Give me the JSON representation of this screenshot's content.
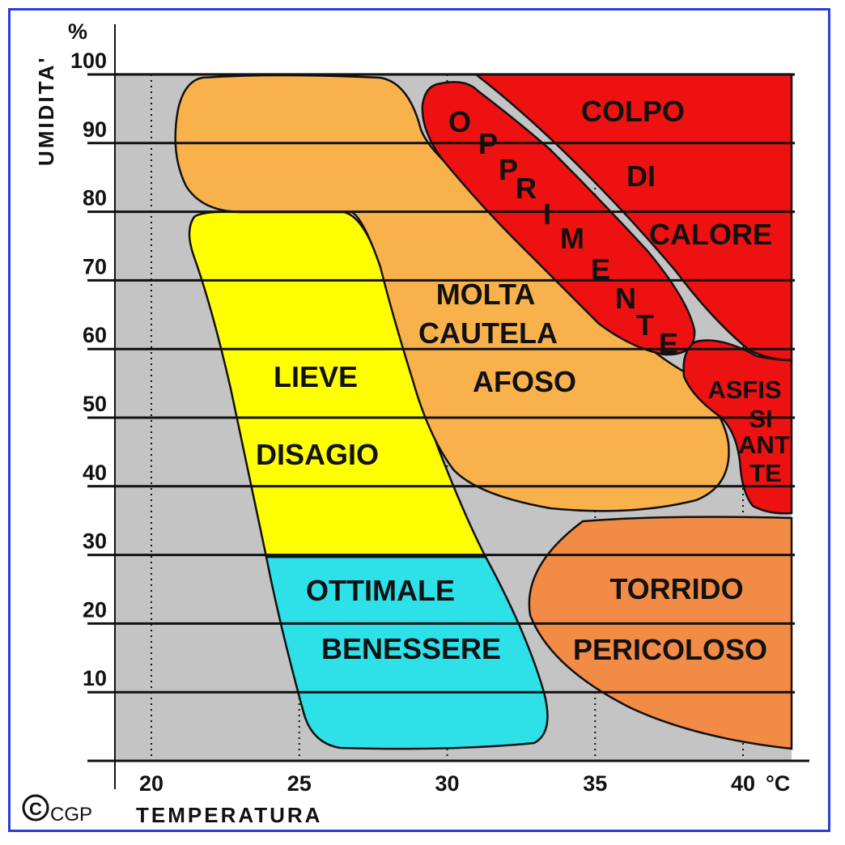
{
  "chart_data": {
    "type": "region-map",
    "ylabel": "UMIDITA'",
    "yunit": "%",
    "xlabel": "TEMPERATURA",
    "xunit": "°C",
    "xlim": [
      19,
      41.5
    ],
    "ylim": [
      0,
      100
    ],
    "x_ticks": [
      "20",
      "25",
      "30",
      "35",
      "40"
    ],
    "y_ticks": [
      "100",
      "90",
      "80",
      "70",
      "60",
      "50",
      "40",
      "30",
      "20",
      "10"
    ],
    "grid": "horizontal solid lines every 10%, vertical dotted lines every 5°C",
    "credit": "CGP",
    "copyright_symbol": "C",
    "regions": [
      {
        "id": "benessere",
        "color": "#2ee0e8",
        "lines": [
          "OTTIMALE",
          "BENESSERE"
        ]
      },
      {
        "id": "lieve-disagio",
        "color": "#ffff00",
        "lines": [
          "LIEVE",
          "DISAGIO"
        ]
      },
      {
        "id": "molta-cautela",
        "color": "#f9b24b",
        "lines": [
          "MOLTA",
          "CAUTELA"
        ]
      },
      {
        "id": "afoso",
        "color": "#f9b24b",
        "lines": [
          "AFOSO"
        ]
      },
      {
        "id": "opprimente",
        "color": "#ee1111",
        "letters": [
          "O",
          "P",
          "P",
          "R",
          "I",
          "M",
          "E",
          "N",
          "T",
          "E"
        ]
      },
      {
        "id": "colpo-di-calore",
        "color": "#ee1111",
        "lines": [
          "COLPO",
          "DI",
          "CALORE"
        ]
      },
      {
        "id": "asfissiante",
        "color": "#ee1111",
        "lines": [
          "ASFIS",
          "SI",
          "ANT",
          "TE"
        ]
      },
      {
        "id": "torrido-pericoloso",
        "color": "#f28b45",
        "lines": [
          "TORRIDO",
          "PERICOLOSO"
        ]
      }
    ],
    "background_color": "#c4c4c4"
  }
}
